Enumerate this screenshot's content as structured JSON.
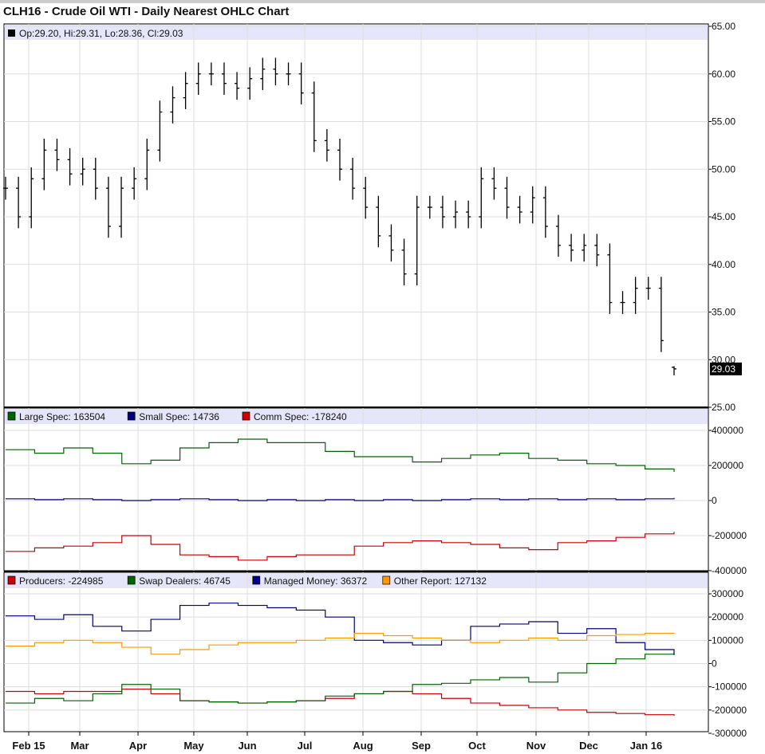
{
  "title": "CLH16 - Crude Oil WTI - Daily Nearest OHLC Chart",
  "chart_data": [
    {
      "type": "ohlc",
      "panel": "price",
      "legend": "Op:29.20, Hi:29.31, Lo:28.36, Cl:29.03",
      "last_price_label": "29.03",
      "ylim": [
        25,
        65
      ],
      "yticks": [
        "65.00",
        "60.00",
        "55.00",
        "50.00",
        "45.00",
        "40.00",
        "35.00",
        "30.00",
        "25.00"
      ],
      "close": [
        48,
        45,
        49,
        52,
        51,
        49.5,
        50,
        48,
        44,
        48,
        49,
        52,
        56,
        57.5,
        59,
        60,
        60,
        59,
        58.5,
        59.5,
        60.5,
        60,
        60,
        58,
        53,
        52,
        50,
        48,
        46,
        43,
        41.5,
        39,
        46,
        46,
        45,
        45.5,
        45,
        49,
        48,
        46,
        45.5,
        47,
        44,
        42,
        41.5,
        42,
        41,
        36,
        36,
        37.5,
        37.5,
        32,
        29.03
      ],
      "last_bar": {
        "open": 29.2,
        "high": 29.31,
        "low": 28.36,
        "close": 29.03
      },
      "color": "#000000"
    },
    {
      "type": "line",
      "panel": "cot-legacy",
      "ylim": [
        -400000,
        400000
      ],
      "yticks": [
        "400000",
        "200000",
        "0",
        "-200000",
        "-400000"
      ],
      "series": [
        {
          "name": "Large Spec",
          "label": "Large Spec: 163504",
          "color": "#006400",
          "values": [
            290000,
            270000,
            300000,
            270000,
            210000,
            230000,
            300000,
            330000,
            350000,
            330000,
            330000,
            280000,
            250000,
            250000,
            220000,
            240000,
            260000,
            270000,
            240000,
            230000,
            210000,
            200000,
            180000,
            163504
          ]
        },
        {
          "name": "Small Spec",
          "label": "Small Spec: 14736",
          "color": "#000080",
          "values": [
            10000,
            5000,
            10000,
            5000,
            0,
            5000,
            10000,
            5000,
            0,
            5000,
            0,
            5000,
            0,
            5000,
            0,
            5000,
            10000,
            5000,
            10000,
            5000,
            10000,
            5000,
            10000,
            14736
          ]
        },
        {
          "name": "Comm Spec",
          "label": "Comm Spec: -178240",
          "color": "#cc0000",
          "values": [
            -290000,
            -270000,
            -260000,
            -240000,
            -200000,
            -250000,
            -310000,
            -320000,
            -340000,
            -320000,
            -310000,
            -310000,
            -260000,
            -240000,
            -230000,
            -240000,
            -250000,
            -270000,
            -280000,
            -240000,
            -230000,
            -210000,
            -190000,
            -178240
          ]
        }
      ]
    },
    {
      "type": "line",
      "panel": "cot-disaggregated",
      "ylim": [
        -300000,
        300000
      ],
      "yticks": [
        "300000",
        "200000",
        "100000",
        "0",
        "-100000",
        "-200000",
        "-300000"
      ],
      "series": [
        {
          "name": "Producers",
          "label": "Producers: -224985",
          "color": "#cc0000",
          "values": [
            -120000,
            -130000,
            -120000,
            -120000,
            -110000,
            -130000,
            -160000,
            -165000,
            -170000,
            -165000,
            -160000,
            -150000,
            -130000,
            -120000,
            -130000,
            -150000,
            -170000,
            -180000,
            -190000,
            -200000,
            -210000,
            -215000,
            -220000,
            -224985
          ]
        },
        {
          "name": "Swap Dealers",
          "label": "Swap Dealers: 46745",
          "color": "#006400",
          "values": [
            -170000,
            -150000,
            -160000,
            -130000,
            -90000,
            -110000,
            -160000,
            -165000,
            -170000,
            -165000,
            -160000,
            -140000,
            -130000,
            -120000,
            -90000,
            -85000,
            -70000,
            -60000,
            -80000,
            -40000,
            0,
            20000,
            40000,
            46745
          ]
        },
        {
          "name": "Managed Money",
          "label": "Managed Money: 36372",
          "color": "#000080",
          "values": [
            205000,
            190000,
            210000,
            160000,
            140000,
            190000,
            250000,
            260000,
            250000,
            240000,
            230000,
            200000,
            100000,
            90000,
            80000,
            100000,
            160000,
            170000,
            180000,
            130000,
            150000,
            90000,
            60000,
            36372
          ]
        },
        {
          "name": "Other Report",
          "label": "Other Report: 127132",
          "color": "#ff9900",
          "values": [
            75000,
            90000,
            100000,
            90000,
            70000,
            40000,
            60000,
            80000,
            90000,
            90000,
            100000,
            110000,
            130000,
            120000,
            110000,
            100000,
            90000,
            100000,
            110000,
            100000,
            120000,
            125000,
            130000,
            127132
          ]
        }
      ]
    }
  ],
  "x_axis": {
    "ticks": [
      "Feb 15",
      "Mar",
      "Apr",
      "May",
      "Jun",
      "Jul",
      "Aug",
      "Sep",
      "Oct",
      "Nov",
      "Dec",
      "Jan 16"
    ]
  }
}
